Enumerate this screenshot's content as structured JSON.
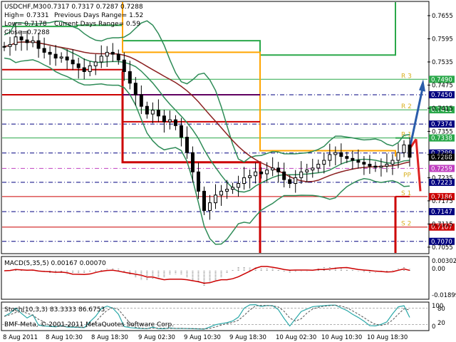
{
  "header": {
    "symbol": "USDCHF,M30",
    "ohlc": "0.7317 0.7317 0.7287 0.7288",
    "high": "High= 0.7331",
    "low": "Low= 0.7178",
    "close": "Close=0.7288",
    "prev_range": "Previous Days Range= 1.52",
    "curr_range": "Current Days Range= 0.59"
  },
  "copyright": "BMF-Meta, © 2001-2011 MetaQuotes Software Corp.",
  "macd": {
    "label": "MACD(5,35,5) 0.00167 0.00070",
    "ticks": [
      "0.00302",
      "0.00",
      "-0.01899"
    ]
  },
  "stoch": {
    "label": "Stoch(10,3,3) 83.3333 86.6753",
    "ticks": [
      "100",
      "80",
      "20",
      "0"
    ]
  },
  "price_axis": {
    "ticks": [
      "0.7655",
      "0.7595",
      "0.7535",
      "0.7475",
      "0.7415",
      "0.7355",
      "0.7295",
      "0.7235",
      "0.7175",
      "0.7115",
      "0.7055"
    ]
  },
  "levels": [
    {
      "price": 0.749,
      "label": "0.7490",
      "color": "#2aa84a",
      "style": "solid",
      "tag": "R 3"
    },
    {
      "price": 0.745,
      "label": "0.7450",
      "color": "#000080",
      "style": "dashdot",
      "tag": ""
    },
    {
      "price": 0.7411,
      "label": "0.7411",
      "color": "#2aa84a",
      "style": "solid",
      "tag": "R 2"
    },
    {
      "price": 0.7374,
      "label": "0.7374",
      "color": "#000080",
      "style": "dashdot",
      "tag": ""
    },
    {
      "price": 0.7338,
      "label": "0.7338",
      "color": "#2aa84a",
      "style": "solid",
      "tag": "R 1"
    },
    {
      "price": 0.7299,
      "label": "0.7299",
      "color": "#000080",
      "style": "dashdot",
      "tag": ""
    },
    {
      "price": 0.7259,
      "label": "0.7259",
      "color": "#c040c0",
      "style": "dashdot",
      "tag": ""
    },
    {
      "price": 0.7223,
      "label": "0.7223",
      "color": "#000080",
      "style": "dashdot",
      "tag": ""
    },
    {
      "price": 0.7186,
      "label": "0.7186",
      "color": "#cc0000",
      "style": "solid",
      "tag": "S 1"
    },
    {
      "price": 0.7147,
      "label": "0.7147",
      "color": "#000080",
      "style": "dashdot",
      "tag": ""
    },
    {
      "price": 0.7107,
      "label": "0.7107",
      "color": "#cc0000",
      "style": "solid",
      "tag": "S 2"
    },
    {
      "price": 0.707,
      "label": "0.7070",
      "color": "#000080",
      "style": "dashdot",
      "tag": ""
    }
  ],
  "pivot_tag": "PP",
  "current_price": {
    "label": "0.7288",
    "price": 0.7288
  },
  "time_axis": {
    "labels": [
      "8 Aug 2011",
      "8 Aug 10:30",
      "8 Aug 18:30",
      "9 Aug 02:30",
      "9 Aug 10:30",
      "9 Aug 18:30",
      "10 Aug 02:30",
      "10 Aug 10:30",
      "10 Aug 18:30"
    ]
  },
  "chart_data": {
    "type": "candlestick",
    "symbol": "USDCHF",
    "timeframe": "M30",
    "ylim": [
      0.704,
      0.769
    ],
    "close_path": [
      0.7575,
      0.758,
      0.76,
      0.7592,
      0.7585,
      0.759,
      0.757,
      0.756,
      0.7555,
      0.7545,
      0.7548,
      0.754,
      0.753,
      0.752,
      0.751,
      0.7525,
      0.7535,
      0.755,
      0.756,
      0.7555,
      0.754,
      0.751,
      0.748,
      0.745,
      0.742,
      0.74,
      0.741,
      0.7395,
      0.738,
      0.7385,
      0.737,
      0.734,
      0.73,
      0.725,
      0.72,
      0.715,
      0.717,
      0.719,
      0.72,
      0.7205,
      0.721,
      0.722,
      0.7235,
      0.724,
      0.725,
      0.7245,
      0.7255,
      0.726,
      0.725,
      0.723,
      0.722,
      0.7235,
      0.725,
      0.7255,
      0.726,
      0.727,
      0.728,
      0.7295,
      0.73,
      0.729,
      0.7285,
      0.728,
      0.7275,
      0.727,
      0.7265,
      0.7262,
      0.7265,
      0.727,
      0.728,
      0.73,
      0.732,
      0.7288
    ]
  },
  "colors": {
    "background": "#ffffff",
    "candle": "#000000",
    "bb_band": "#2e8b57",
    "moving_avg": "#8b2020",
    "prev_high": "#ffa500",
    "prev_low": "#cc0000",
    "day_high_green": "#2aa84a",
    "arrow_up": "#2a5caa",
    "arrow_down": "#dd2222"
  }
}
